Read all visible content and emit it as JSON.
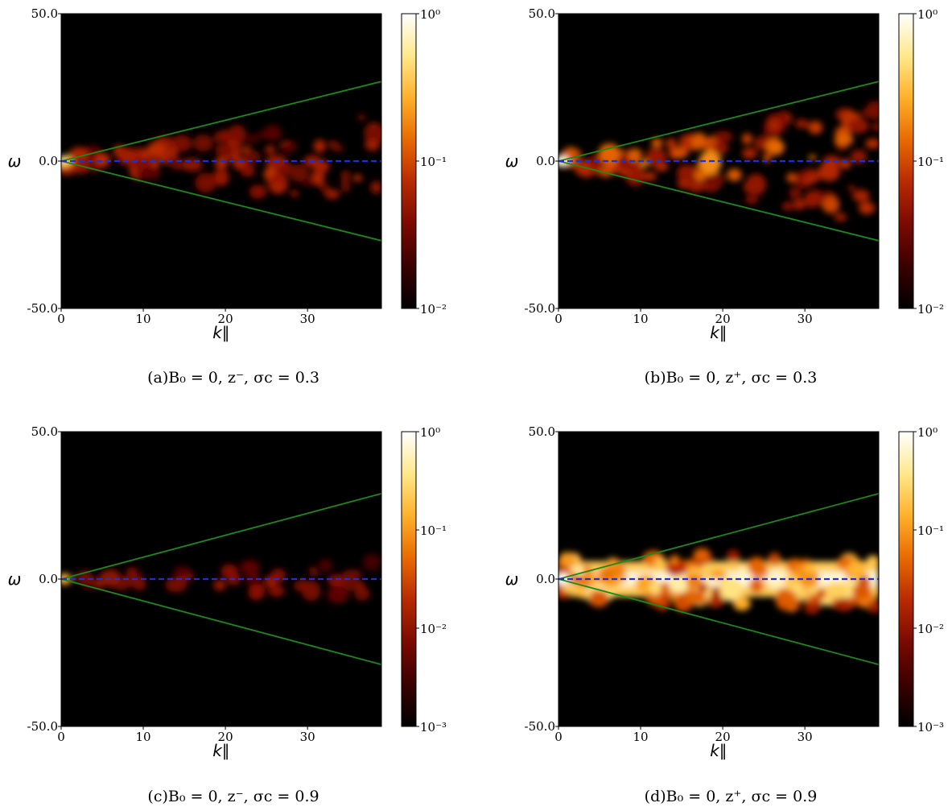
{
  "colors": {
    "green_line": "#1a8a1a",
    "blue_dashed_line": "#1f2fd6",
    "background": "#000000",
    "colormap": [
      "#000000",
      "#3a0000",
      "#7a0a00",
      "#b82a00",
      "#e86a00",
      "#ffb02a",
      "#ffe88a",
      "#ffffff"
    ]
  },
  "chart_data": [
    {
      "type": "heatmap",
      "panel": "a",
      "caption": "(a)B₀ = 0, z⁻, σc = 0.3",
      "xlabel": "k∥",
      "ylabel": "ω",
      "xlim": [
        0,
        39
      ],
      "ylim": [
        -50.0,
        50.0
      ],
      "x_ticks": [
        "0",
        "10",
        "20",
        "30"
      ],
      "y_ticks": [
        "-50.0",
        "0.0",
        "50.0"
      ],
      "colorbar": {
        "scale": "log",
        "range": [
          0.01,
          1
        ],
        "ticks": [
          "10⁻²",
          "10⁻¹",
          "10⁰"
        ]
      },
      "lines": [
        {
          "style": "solid",
          "color": "green",
          "x": [
            0,
            39
          ],
          "y": [
            0,
            27
          ]
        },
        {
          "style": "solid",
          "color": "green",
          "x": [
            0,
            39
          ],
          "y": [
            0,
            -27
          ]
        },
        {
          "style": "dashed",
          "color": "blue",
          "x": [
            0,
            39
          ],
          "y": [
            0,
            0
          ]
        }
      ],
      "intensity_spread": 0.55,
      "intensity_level": 0.45
    },
    {
      "type": "heatmap",
      "panel": "b",
      "caption": "(b)B₀ = 0, z⁺, σc = 0.3",
      "xlabel": "k∥",
      "ylabel": "ω",
      "xlim": [
        0,
        39
      ],
      "ylim": [
        -50.0,
        50.0
      ],
      "x_ticks": [
        "0",
        "10",
        "20",
        "30"
      ],
      "y_ticks": [
        "-50.0",
        "0.0",
        "50.0"
      ],
      "colorbar": {
        "scale": "log",
        "range": [
          0.01,
          1
        ],
        "ticks": [
          "10⁻²",
          "10⁻¹",
          "10⁰"
        ]
      },
      "lines": [
        {
          "style": "solid",
          "color": "green",
          "x": [
            0,
            39
          ],
          "y": [
            0,
            27
          ]
        },
        {
          "style": "solid",
          "color": "green",
          "x": [
            0,
            39
          ],
          "y": [
            0,
            -27
          ]
        },
        {
          "style": "dashed",
          "color": "blue",
          "x": [
            0,
            39
          ],
          "y": [
            0,
            0
          ]
        }
      ],
      "intensity_spread": 0.75,
      "intensity_level": 0.6
    },
    {
      "type": "heatmap",
      "panel": "c",
      "caption": "(c)B₀ = 0, z⁻, σc = 0.9",
      "xlabel": "k∥",
      "ylabel": "ω",
      "xlim": [
        0,
        39
      ],
      "ylim": [
        -50.0,
        50.0
      ],
      "x_ticks": [
        "0",
        "10",
        "20",
        "30"
      ],
      "y_ticks": [
        "-50.0",
        "0.0",
        "50.0"
      ],
      "colorbar": {
        "scale": "log",
        "range": [
          0.001,
          1
        ],
        "ticks": [
          "10⁻³",
          "10⁻²",
          "10⁻¹",
          "10⁰"
        ]
      },
      "lines": [
        {
          "style": "solid",
          "color": "green",
          "x": [
            0,
            39
          ],
          "y": [
            0,
            29
          ]
        },
        {
          "style": "solid",
          "color": "green",
          "x": [
            0,
            39
          ],
          "y": [
            0,
            -29
          ]
        },
        {
          "style": "dashed",
          "color": "blue",
          "x": [
            0,
            39
          ],
          "y": [
            0,
            0
          ]
        }
      ],
      "intensity_spread": 0.18,
      "intensity_level": 0.35
    },
    {
      "type": "heatmap",
      "panel": "d",
      "caption": "(d)B₀ = 0, z⁺, σc = 0.9",
      "xlabel": "k∥",
      "ylabel": "ω",
      "xlim": [
        0,
        39
      ],
      "ylim": [
        -50.0,
        50.0
      ],
      "x_ticks": [
        "0",
        "10",
        "20",
        "30"
      ],
      "y_ticks": [
        "-50.0",
        "0.0",
        "50.0"
      ],
      "colorbar": {
        "scale": "log",
        "range": [
          0.001,
          1
        ],
        "ticks": [
          "10⁻³",
          "10⁻²",
          "10⁻¹",
          "10⁰"
        ]
      },
      "lines": [
        {
          "style": "solid",
          "color": "green",
          "x": [
            0,
            39
          ],
          "y": [
            0,
            29
          ]
        },
        {
          "style": "solid",
          "color": "green",
          "x": [
            0,
            39
          ],
          "y": [
            0,
            -29
          ]
        },
        {
          "style": "dashed",
          "color": "blue",
          "x": [
            0,
            39
          ],
          "y": [
            0,
            0
          ]
        }
      ],
      "intensity_spread": 0.2,
      "intensity_level": 0.95
    }
  ]
}
